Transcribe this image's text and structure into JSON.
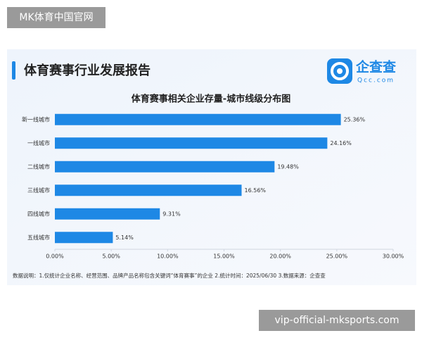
{
  "watermark_top": "MK体育中国官网",
  "header": {
    "title": "体育赛事行业发展报告",
    "logo_name": "企查查",
    "logo_url": "Qcc.com"
  },
  "chart_data": {
    "type": "hbar",
    "title": "体育赛事相关企业存量-城市线级分布图",
    "categories": [
      "新一线城市",
      "一线城市",
      "二线城市",
      "三线城市",
      "四线城市",
      "五线城市"
    ],
    "values": [
      25.36,
      24.16,
      19.48,
      16.56,
      9.31,
      5.14
    ],
    "value_labels": [
      "25.36%",
      "24.16%",
      "19.48%",
      "16.56%",
      "9.31%",
      "5.14%"
    ],
    "color": "#1e88e5",
    "xlim": [
      0,
      30
    ],
    "xticks": [
      {
        "value": 0,
        "label": "0.00%"
      },
      {
        "value": 5,
        "label": "5.00%"
      },
      {
        "value": 10,
        "label": "10.00%"
      },
      {
        "value": 15,
        "label": "15.00%"
      },
      {
        "value": 20,
        "label": "20.00%"
      },
      {
        "value": 25,
        "label": "25.00%"
      },
      {
        "value": 30,
        "label": "30.00%"
      }
    ],
    "grid": false
  },
  "footnote": "数据说明：1.仅统计企业名称、经营范围、品牌产品名称包含关键词“体育赛事”的企业  2.统计时间：2025/06/30  3.数据来源：企查查",
  "watermark_bottom": "vip-official-mksports.com"
}
